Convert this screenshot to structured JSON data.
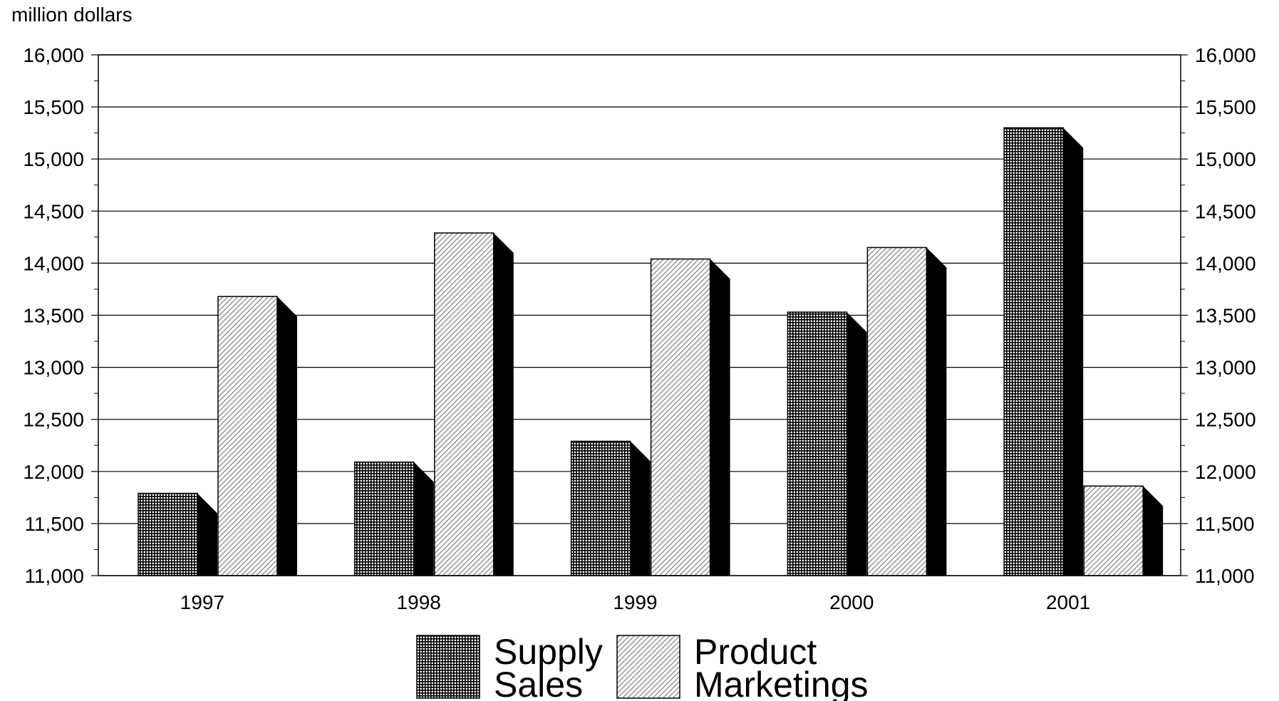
{
  "chart_data": {
    "type": "bar",
    "unit_label": "million dollars",
    "categories": [
      "1997",
      "1998",
      "1999",
      "2000",
      "2001"
    ],
    "series": [
      {
        "name_lines": [
          "Supply",
          "Sales"
        ],
        "values": [
          11790,
          12090,
          12290,
          13530,
          15300
        ],
        "pattern": "grid"
      },
      {
        "name_lines": [
          "Product",
          "Marketings"
        ],
        "values": [
          13680,
          14290,
          14040,
          14150,
          11860
        ],
        "pattern": "hatch"
      }
    ],
    "ylim": [
      11000,
      16000
    ],
    "y_ticks": [
      "11,000",
      "11,500",
      "12,000",
      "12,500",
      "13,000",
      "13,500",
      "14,000",
      "14,500",
      "15,000",
      "15,500",
      "16,000"
    ],
    "y_tick_values": [
      11000,
      11500,
      12000,
      12500,
      13000,
      13500,
      14000,
      14500,
      15000,
      15500,
      16000
    ],
    "grid": true,
    "legend_position": "bottom",
    "three_d": true,
    "colors": {
      "frame": "#000000",
      "background": "#ffffff",
      "shadow": "#000000"
    }
  }
}
